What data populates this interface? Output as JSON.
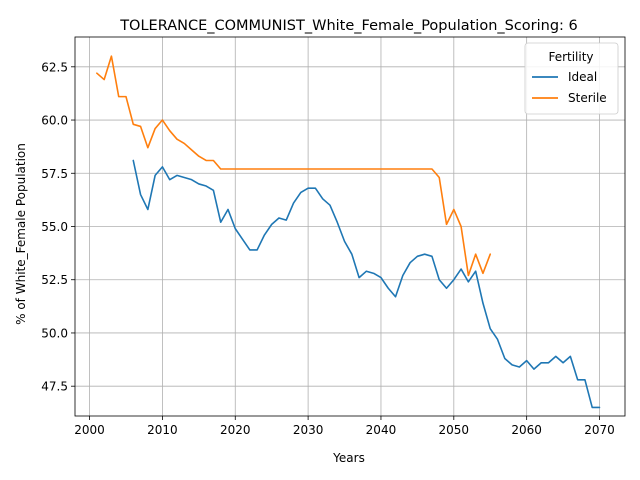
{
  "chart_data": {
    "type": "line",
    "title": "TOLERANCE_COMMUNIST_White_Female_Population_Scoring: 6",
    "xlabel": "Years",
    "ylabel": "% of White_Female Population",
    "xlim": [
      1998,
      2073.5
    ],
    "ylim": [
      46.1,
      63.9
    ],
    "x_ticks": [
      2000,
      2010,
      2020,
      2030,
      2040,
      2050,
      2060,
      2070
    ],
    "y_ticks": [
      47.5,
      50.0,
      52.5,
      55.0,
      57.5,
      60.0,
      62.5
    ],
    "grid": true,
    "legend": {
      "title": "Fertility",
      "placement": "top-right"
    },
    "series": [
      {
        "name": "Ideal",
        "color": "#1f77b4",
        "x": [
          2006,
          2007,
          2008,
          2009,
          2010,
          2011,
          2012,
          2013,
          2014,
          2015,
          2016,
          2017,
          2018,
          2019,
          2020,
          2021,
          2022,
          2023,
          2024,
          2025,
          2026,
          2027,
          2028,
          2029,
          2030,
          2031,
          2032,
          2033,
          2034,
          2035,
          2036,
          2037,
          2038,
          2039,
          2040,
          2041,
          2042,
          2043,
          2044,
          2045,
          2046,
          2047,
          2048,
          2049,
          2050,
          2051,
          2052,
          2053,
          2054,
          2055,
          2056,
          2057,
          2058,
          2059,
          2060,
          2061,
          2062,
          2063,
          2064,
          2065,
          2066,
          2067,
          2068,
          2069,
          2070
        ],
        "y": [
          58.1,
          56.5,
          55.8,
          57.4,
          57.8,
          57.2,
          57.4,
          57.3,
          57.2,
          57.0,
          56.9,
          56.7,
          55.2,
          55.8,
          54.9,
          54.4,
          53.9,
          53.9,
          54.6,
          55.1,
          55.4,
          55.3,
          56.1,
          56.6,
          56.8,
          56.8,
          56.3,
          56.0,
          55.2,
          54.3,
          53.7,
          52.6,
          52.9,
          52.8,
          52.6,
          52.1,
          51.7,
          52.7,
          53.3,
          53.6,
          53.7,
          53.6,
          52.5,
          52.1,
          52.5,
          53.0,
          52.4,
          52.9,
          51.4,
          50.2,
          49.7,
          48.8,
          48.5,
          48.4,
          48.7,
          48.3,
          48.6,
          48.6,
          48.9,
          48.6,
          48.9,
          47.8,
          47.8,
          46.5,
          46.5
        ]
      },
      {
        "name": "Sterile",
        "color": "#ff7f0e",
        "x": [
          2001,
          2002,
          2003,
          2004,
          2005,
          2006,
          2007,
          2008,
          2009,
          2010,
          2011,
          2012,
          2013,
          2014,
          2015,
          2016,
          2017,
          2018,
          2019,
          2020,
          2021,
          2022,
          2023,
          2024,
          2025,
          2026,
          2027,
          2028,
          2029,
          2030,
          2031,
          2032,
          2033,
          2034,
          2035,
          2036,
          2037,
          2038,
          2039,
          2040,
          2041,
          2042,
          2043,
          2044,
          2045,
          2046,
          2047,
          2048,
          2049,
          2050,
          2051,
          2052,
          2053,
          2054,
          2055
        ],
        "y": [
          62.2,
          61.9,
          63.0,
          61.1,
          61.1,
          59.8,
          59.7,
          58.7,
          59.6,
          60.0,
          59.5,
          59.1,
          58.9,
          58.6,
          58.3,
          58.1,
          58.1,
          57.7,
          57.7,
          57.7,
          57.7,
          57.7,
          57.7,
          57.7,
          57.7,
          57.7,
          57.7,
          57.7,
          57.7,
          57.7,
          57.7,
          57.7,
          57.7,
          57.7,
          57.7,
          57.7,
          57.7,
          57.7,
          57.7,
          57.7,
          57.7,
          57.7,
          57.7,
          57.7,
          57.7,
          57.7,
          57.7,
          57.3,
          55.1,
          55.8,
          55.0,
          52.7,
          53.7,
          52.8,
          53.7
        ]
      }
    ]
  }
}
